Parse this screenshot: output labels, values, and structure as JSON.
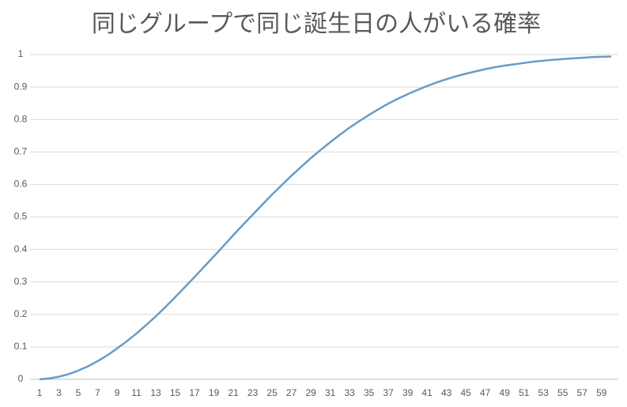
{
  "chart_data": {
    "type": "line",
    "title": "同じグループで同じ誕生日の人がいる確率",
    "categories": [
      1,
      null,
      3,
      null,
      5,
      null,
      7,
      null,
      9,
      null,
      11,
      null,
      13,
      null,
      15,
      null,
      17,
      null,
      19,
      null,
      21,
      null,
      23,
      null,
      25,
      null,
      27,
      null,
      29,
      null,
      31,
      null,
      33,
      null,
      35,
      null,
      37,
      null,
      39,
      null,
      41,
      null,
      43,
      null,
      45,
      null,
      47,
      null,
      49,
      null,
      51,
      null,
      53,
      null,
      55,
      null,
      57,
      null,
      59,
      null
    ],
    "values": [
      0,
      0.003,
      0.008,
      0.016,
      0.027,
      0.04,
      0.056,
      0.074,
      0.095,
      0.117,
      0.141,
      0.167,
      0.194,
      0.223,
      0.253,
      0.284,
      0.315,
      0.347,
      0.379,
      0.411,
      0.444,
      0.476,
      0.507,
      0.538,
      0.569,
      0.598,
      0.627,
      0.654,
      0.681,
      0.706,
      0.73,
      0.753,
      0.775,
      0.795,
      0.814,
      0.832,
      0.849,
      0.864,
      0.878,
      0.891,
      0.903,
      0.914,
      0.924,
      0.933,
      0.941,
      0.948,
      0.955,
      0.961,
      0.966,
      0.97,
      0.974,
      0.978,
      0.981,
      0.984,
      0.986,
      0.988,
      0.99,
      0.992,
      0.993,
      0.994
    ],
    "color": "#6a9bc4",
    "ylim": [
      0,
      1
    ],
    "yticks": [
      0,
      0.1,
      0.2,
      0.3,
      0.4,
      0.5,
      0.6,
      0.7,
      0.8,
      0.9,
      1
    ],
    "grid": true
  }
}
